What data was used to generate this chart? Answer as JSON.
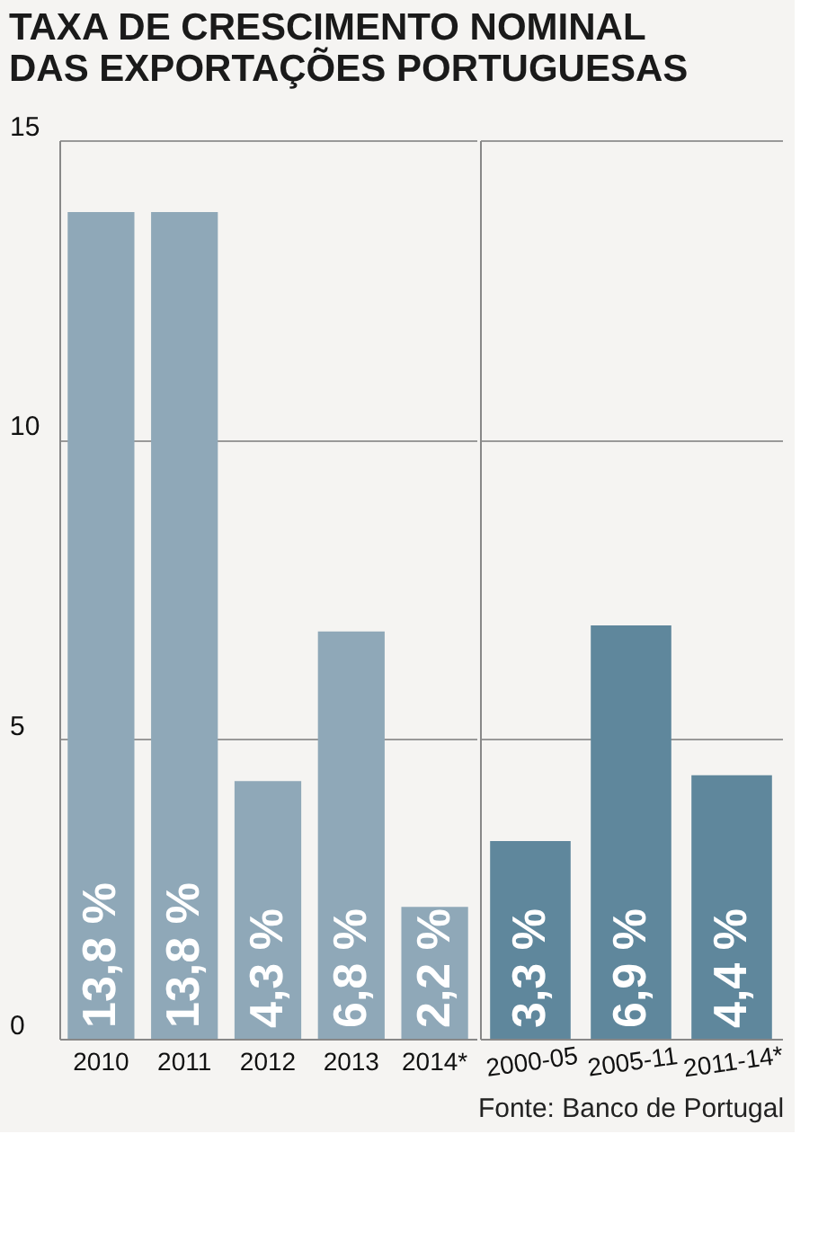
{
  "chart_data": [
    {
      "type": "bar",
      "title": "TAXA DE CRESCIMENTO NOMINAL\nDAS EXPORTAÇÕES PORTUGUESAS",
      "categories": [
        "2010",
        "2011",
        "2012",
        "2013",
        "2014*"
      ],
      "values": [
        13.8,
        13.8,
        4.3,
        6.8,
        2.2
      ],
      "value_labels": [
        "13,8 %",
        "13,8 %",
        "4,3 %",
        "6,8 %",
        "2,2 %"
      ],
      "color": "#8fa8b8",
      "ylim": [
        0,
        15
      ],
      "yticks": [
        0,
        5,
        10,
        15
      ],
      "grid": "y"
    },
    {
      "type": "bar",
      "categories": [
        "2000-05",
        "2005-11",
        "2011-14*"
      ],
      "values": [
        3.3,
        6.9,
        4.4
      ],
      "value_labels": [
        "3,3 %",
        "6,9 %",
        "4,4 %"
      ],
      "color": "#5f879c",
      "ylim": [
        0,
        15
      ],
      "yticks": [
        0,
        5,
        10,
        15
      ],
      "grid": "y",
      "tick_labels": "x",
      "annotations": [
        "Fonte: Banco de Portugal"
      ]
    }
  ]
}
